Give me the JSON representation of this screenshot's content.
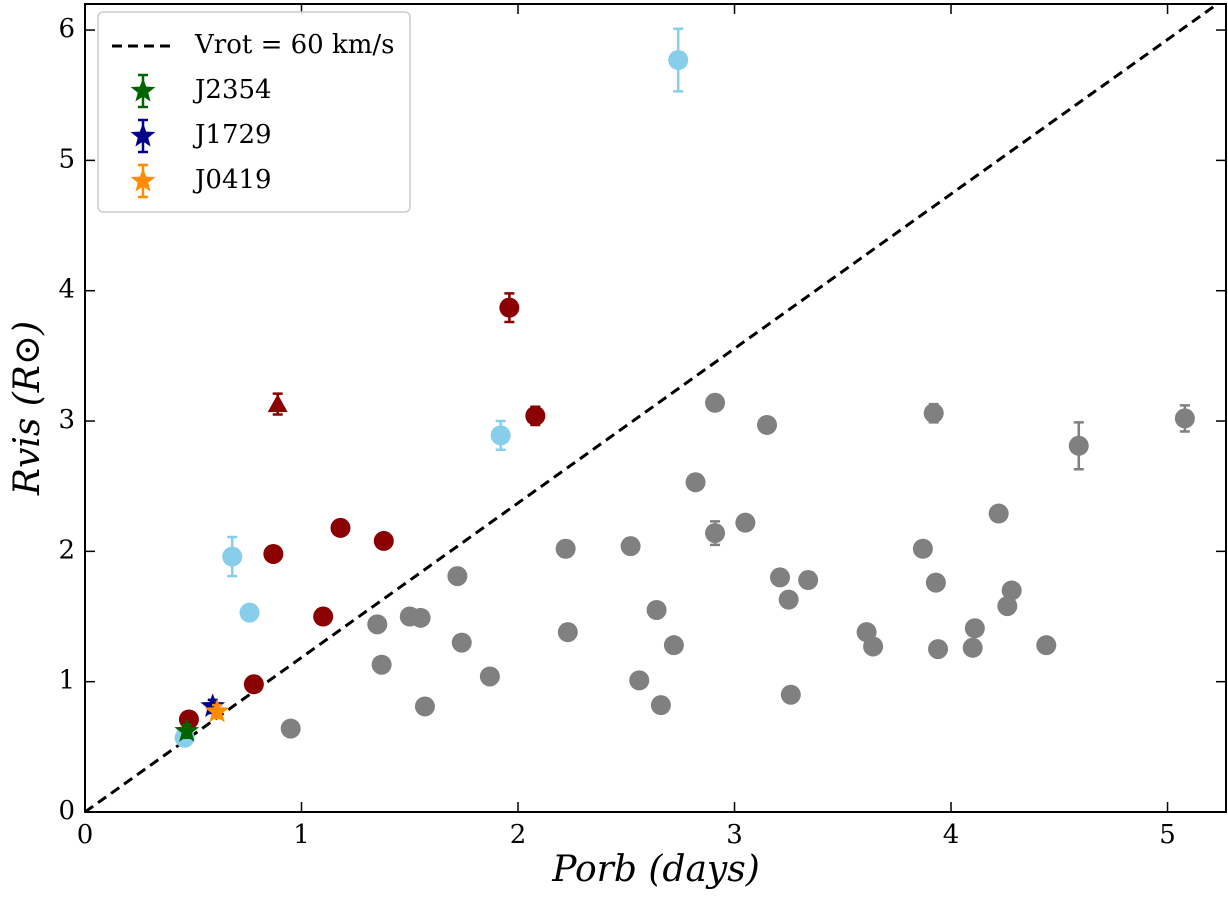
{
  "chart_data": {
    "type": "scatter",
    "xlabel": "Porb (days)",
    "ylabel": "Rvis (R⊙)",
    "xlim": [
      0,
      5.27
    ],
    "ylim": [
      0,
      6.2
    ],
    "xticks": [
      0,
      1,
      2,
      3,
      4,
      5
    ],
    "yticks": [
      0,
      1,
      2,
      3,
      4,
      5,
      6
    ],
    "legend": "upper left",
    "series": [
      {
        "name": "Vrot = 60 km/s",
        "type": "line",
        "style": "dashed",
        "color": "#000000",
        "x": [
          0,
          5.23
        ],
        "values": [
          0,
          6.2
        ]
      },
      {
        "color": "#808080",
        "marker": "circle",
        "x": [
          0.95,
          1.35,
          1.37,
          1.5,
          1.55,
          1.57,
          1.72,
          1.74,
          1.87,
          2.22,
          2.23,
          2.52,
          2.56,
          2.64,
          2.66,
          2.72,
          2.82,
          2.91,
          2.91,
          3.05,
          3.15,
          3.21,
          3.25,
          3.26,
          3.34,
          3.61,
          3.64,
          3.87,
          3.92,
          3.93,
          3.94,
          4.1,
          4.11,
          4.22,
          4.26,
          4.28,
          4.44,
          4.59,
          5.08
        ],
        "values": [
          0.64,
          1.44,
          1.13,
          1.5,
          1.49,
          0.81,
          1.81,
          1.3,
          1.04,
          2.02,
          1.38,
          2.04,
          1.01,
          1.55,
          0.82,
          1.28,
          2.53,
          3.14,
          2.14,
          2.22,
          2.97,
          1.8,
          1.63,
          0.9,
          1.78,
          1.38,
          1.27,
          2.02,
          3.06,
          1.76,
          1.25,
          1.26,
          1.41,
          2.29,
          1.58,
          1.7,
          1.28,
          2.81,
          3.02
        ],
        "errors": [
          null,
          null,
          null,
          null,
          null,
          null,
          null,
          null,
          null,
          0.06,
          null,
          null,
          null,
          null,
          null,
          null,
          null,
          null,
          0.09,
          null,
          null,
          null,
          null,
          null,
          null,
          null,
          null,
          null,
          0.07,
          null,
          null,
          null,
          null,
          null,
          null,
          null,
          null,
          0.18,
          0.1
        ]
      },
      {
        "color": "#8b0000",
        "marker": "circle",
        "x": [
          0.48,
          0.78,
          0.87,
          1.1,
          1.18,
          1.38,
          1.96,
          2.08
        ],
        "values": [
          0.71,
          0.98,
          1.98,
          1.5,
          2.18,
          2.08,
          3.87,
          3.04
        ],
        "errors": [
          null,
          null,
          null,
          null,
          null,
          null,
          0.11,
          0.07
        ]
      },
      {
        "color": "#8b0000",
        "marker": "triangle",
        "x": [
          0.89
        ],
        "values": [
          3.13
        ],
        "errors": [
          0.08
        ]
      },
      {
        "color": "#87ceeb",
        "marker": "circle",
        "x": [
          0.46,
          0.68,
          0.76,
          1.92,
          2.74
        ],
        "values": [
          0.57,
          1.96,
          1.53,
          2.89,
          5.77
        ],
        "errors": [
          null,
          0.15,
          null,
          0.11,
          0.24
        ]
      },
      {
        "name": "J2354",
        "color": "#006400",
        "marker": "star",
        "x": [
          0.47
        ],
        "values": [
          0.62
        ],
        "errors": [
          0.05
        ]
      },
      {
        "name": "J1729",
        "color": "#00008b",
        "marker": "star",
        "x": [
          0.59
        ],
        "values": [
          0.81
        ],
        "errors": [
          0.05
        ]
      },
      {
        "name": "J0419",
        "color": "#ff8c00",
        "marker": "star",
        "x": [
          0.61
        ],
        "values": [
          0.77
        ],
        "errors": [
          0.05
        ]
      }
    ]
  }
}
